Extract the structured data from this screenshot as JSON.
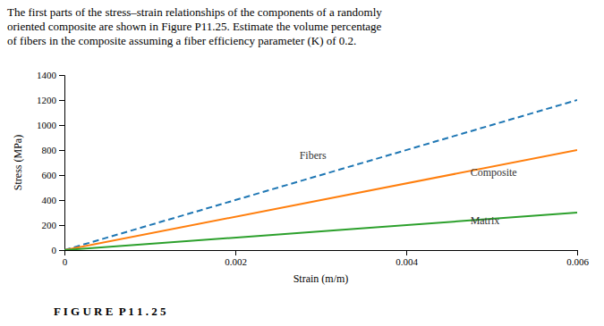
{
  "chart_data": {
    "type": "line",
    "title": "The first parts of the stress–strain relationships of the components of a randomly\noriented composite are shown in Figure P11.25. Estimate the volume percentage\nof fibers in the composite assuming a fiber efficiency parameter (K) of 0.2.",
    "x_label": "Strain (m/m)",
    "y_label": "Stress (MPa)",
    "caption": "F I G U R E  P 1 1 . 2 5",
    "xlim": [
      0,
      0.006
    ],
    "ylim": [
      0,
      1400
    ],
    "xticks": [
      0,
      0.002,
      0.004,
      0.006
    ],
    "yticks": [
      0,
      200,
      400,
      600,
      800,
      1000,
      1200,
      1400
    ],
    "series": [
      {
        "x": [
          0,
          0.006
        ],
        "values": [
          0,
          1200
        ],
        "line_style": "dashed"
      },
      {
        "x": [
          0,
          0.006
        ],
        "values": [
          0,
          800
        ],
        "line_style": "solid"
      },
      {
        "x": [
          0,
          0.006
        ],
        "values": [
          0,
          300
        ],
        "line_style": "solid"
      }
    ],
    "annotations": [
      {
        "text": "Fibers",
        "x": 0.00275,
        "y": 760
      },
      {
        "text": "Composite",
        "x": 0.00475,
        "y": 625
      },
      {
        "text": "Matrix",
        "x": 0.00475,
        "y": 240
      }
    ]
  }
}
